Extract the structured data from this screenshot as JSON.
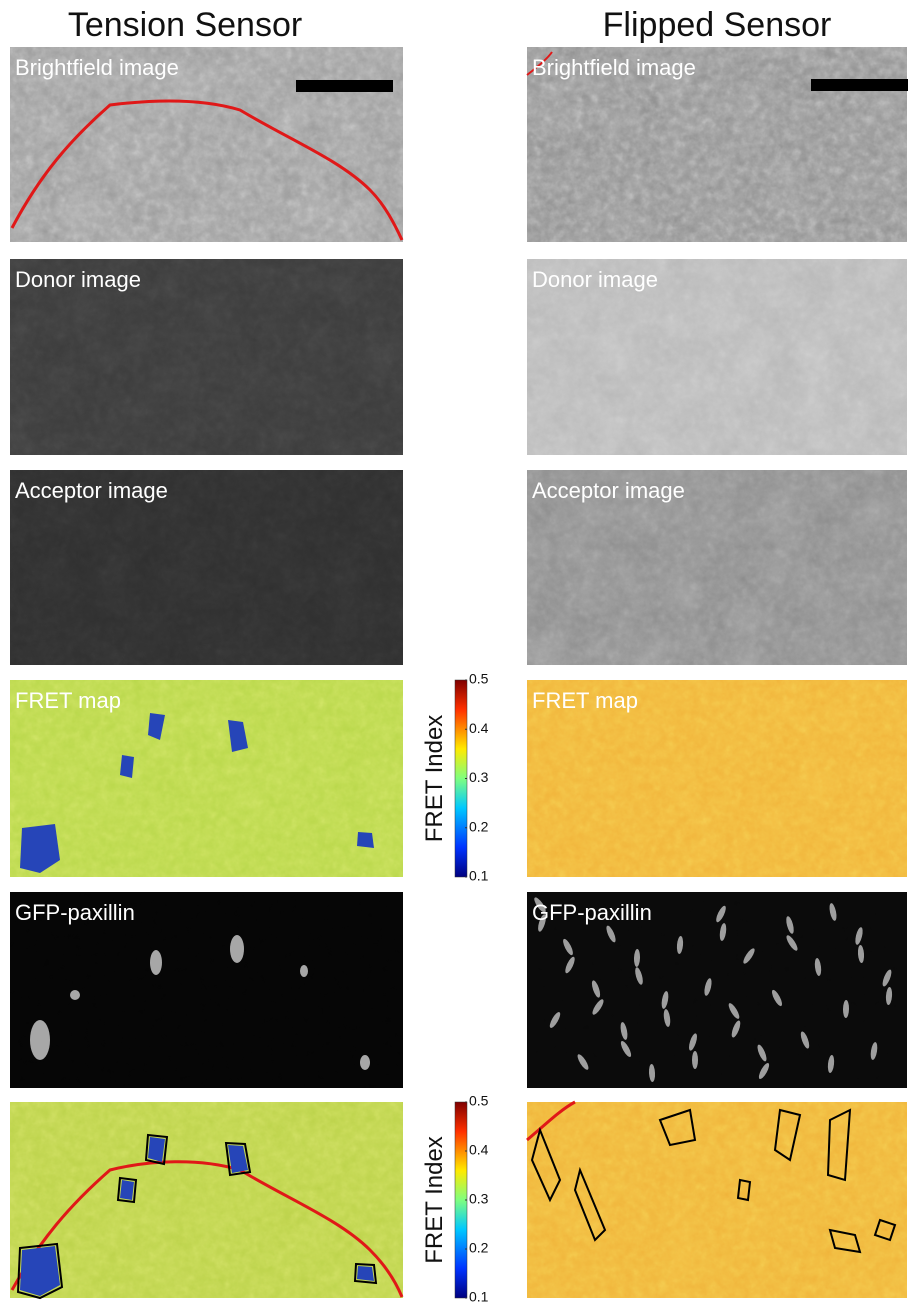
{
  "columns": [
    {
      "title": "Tension Sensor",
      "panels": [
        "Brightfield image",
        "Donor image",
        "Acceptor image",
        "FRET map",
        "GFP-paxillin"
      ]
    },
    {
      "title": "Flipped Sensor",
      "panels": [
        "Brightfield image",
        "Donor image",
        "Acceptor image",
        "FRET map",
        "GFP-paxillin"
      ]
    }
  ],
  "colorbars": [
    {
      "label": "FRET Index",
      "ticks": [
        0.5,
        0.4,
        0.3,
        0.2,
        0.1
      ]
    },
    {
      "label": "FRET Index",
      "ticks": [
        0.5,
        0.4,
        0.3,
        0.2,
        0.1
      ]
    }
  ]
}
